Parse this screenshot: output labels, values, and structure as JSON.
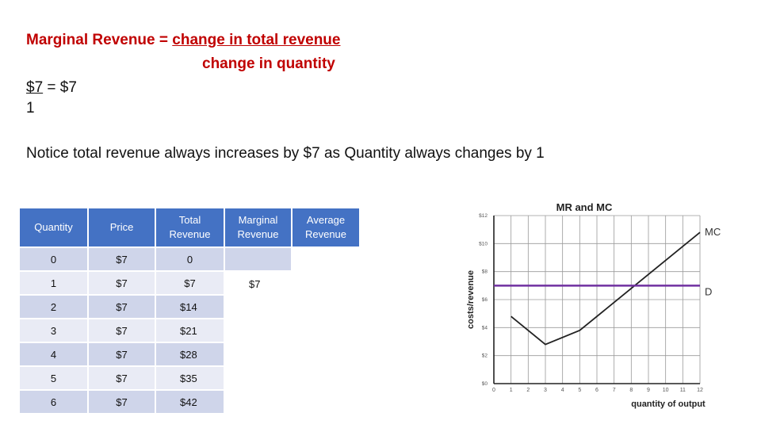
{
  "formula": {
    "lhs": "Marginal Revenue = ",
    "numerator": "change in total revenue",
    "denominator": "change in quantity"
  },
  "example": {
    "numerator": "$7",
    "equals": " = $7",
    "denominator": "1"
  },
  "notice": "Notice total revenue always increases by $7 as Quantity always changes by 1",
  "table": {
    "headers": {
      "quantity": "Quantity",
      "price": "Price",
      "total_revenue": "Total Revenue",
      "marginal_revenue": "Marginal Revenue",
      "average_revenue": "Average Revenue"
    },
    "rows": [
      {
        "q": "0",
        "p": "$7",
        "tr": "0"
      },
      {
        "q": "1",
        "p": "$7",
        "tr": "$7"
      },
      {
        "q": "2",
        "p": "$7",
        "tr": "$14"
      },
      {
        "q": "3",
        "p": "$7",
        "tr": "$21"
      },
      {
        "q": "4",
        "p": "$7",
        "tr": "$28"
      },
      {
        "q": "5",
        "p": "$7",
        "tr": "$35"
      },
      {
        "q": "6",
        "p": "$7",
        "tr": "$42"
      }
    ],
    "marginal_revenue_value": "$7"
  },
  "chart_data": {
    "type": "line",
    "title": "MR and MC",
    "xlabel": "quantity of output",
    "ylabel": "costs/revenue",
    "xlim": [
      0,
      12
    ],
    "ylim": [
      0,
      12
    ],
    "x_ticks": [
      "0",
      "1",
      "2",
      "3",
      "4",
      "5",
      "6",
      "7",
      "8",
      "9",
      "10",
      "11",
      "12"
    ],
    "y_ticks": [
      "$0",
      "$2",
      "$4",
      "$6",
      "$8",
      "$10",
      "$12"
    ],
    "grid": true,
    "series": [
      {
        "name": "MC",
        "color": "#222222",
        "x": [
          1,
          3,
          5,
          12
        ],
        "y": [
          4.8,
          2.8,
          3.8,
          10.8
        ]
      },
      {
        "name": "D",
        "color": "#7030a0",
        "x": [
          0,
          12
        ],
        "y": [
          7,
          7
        ]
      }
    ]
  }
}
